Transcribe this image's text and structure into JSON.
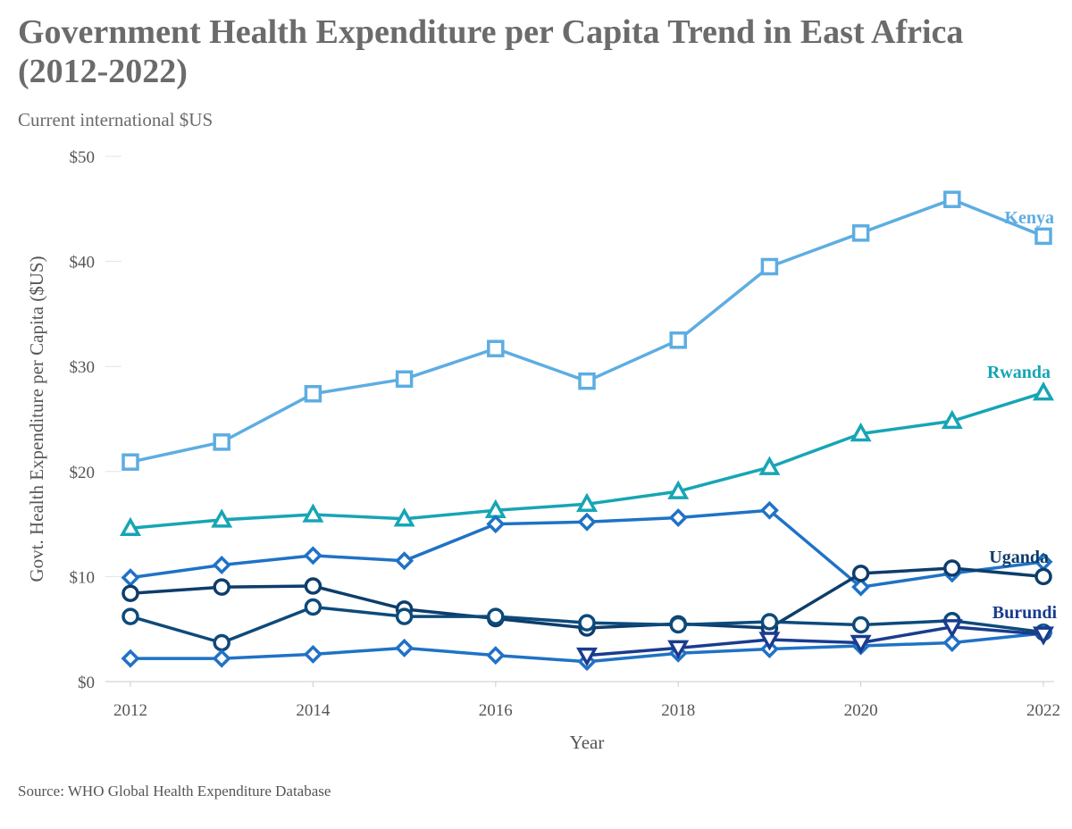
{
  "title": "Government Health Expenditure per Capita Trend in East Africa (2012-2022)",
  "subtitle": "Current international $US",
  "source": "Source: WHO Global Health Expenditure Database",
  "chart_data": {
    "type": "line",
    "title": "Government Health Expenditure per Capita Trend in East Africa (2012-2022)",
    "subtitle": "Current international $US",
    "xlabel": "Year",
    "ylabel": "Govt. Health Expenditure per Capita ($US)",
    "xlim": [
      2012,
      2022
    ],
    "ylim": [
      0,
      50
    ],
    "x_ticks": [
      "2012",
      "2014",
      "2016",
      "2018",
      "2020",
      "2022"
    ],
    "y_ticks": [
      "$0",
      "$10",
      "$20",
      "$30",
      "$40",
      "$50"
    ],
    "grid": "horizontal",
    "legend": "direct labels at line ends",
    "x": [
      2012,
      2013,
      2014,
      2015,
      2016,
      2017,
      2018,
      2019,
      2020,
      2021,
      2022
    ],
    "series": [
      {
        "name": "Kenya",
        "label": "Kenya",
        "color": "#5dade2",
        "marker": "square",
        "values": [
          20.9,
          22.8,
          27.4,
          28.8,
          31.7,
          28.6,
          32.5,
          39.5,
          42.7,
          45.9,
          42.4
        ]
      },
      {
        "name": "Rwanda",
        "label": "Rwanda",
        "color": "#17a5b5",
        "marker": "triangle-up",
        "values": [
          14.6,
          15.4,
          15.9,
          15.5,
          16.3,
          16.9,
          18.1,
          20.4,
          23.6,
          24.8,
          27.5
        ]
      },
      {
        "name": "",
        "label": "",
        "color": "#1f72c6",
        "marker": "diamond",
        "values": [
          9.9,
          11.1,
          12.0,
          11.5,
          15.0,
          15.2,
          15.6,
          16.3,
          9.0,
          10.3,
          11.4
        ]
      },
      {
        "name": "Uganda",
        "label": "Uganda",
        "color": "#0d3d6b",
        "marker": "circle",
        "values": [
          8.4,
          9.0,
          9.1,
          6.9,
          6.0,
          5.1,
          5.5,
          5.1,
          10.3,
          10.8,
          10.0
        ]
      },
      {
        "name": "",
        "label": "",
        "color": "#0d4a7a",
        "marker": "circle",
        "values": [
          6.2,
          3.7,
          7.1,
          6.2,
          6.2,
          5.6,
          5.4,
          5.7,
          5.4,
          5.8,
          4.7
        ]
      },
      {
        "name": "",
        "label": "",
        "color": "#1f72c6",
        "marker": "diamond",
        "values": [
          2.2,
          2.2,
          2.6,
          3.2,
          2.5,
          1.9,
          2.7,
          3.1,
          3.4,
          3.7,
          4.6
        ]
      },
      {
        "name": "Burundi",
        "label": "Burundi",
        "color": "#1a3c8f",
        "marker": "triangle-down",
        "values": [
          null,
          null,
          null,
          null,
          null,
          2.5,
          3.2,
          4.0,
          3.7,
          5.2,
          4.5
        ]
      }
    ]
  }
}
